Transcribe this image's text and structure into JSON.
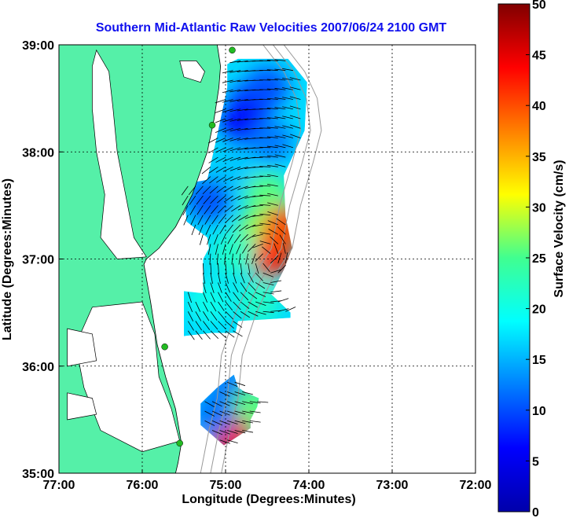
{
  "chart_data": {
    "type": "heatmap",
    "title": "Southern Mid-Atlantic Raw Velocities 2007/06/24 2100 GMT",
    "xlabel": "Longitude (Degrees:Minutes)",
    "ylabel": "Latitude (Degrees:Minutes)",
    "xlim": [
      -77,
      -72
    ],
    "ylim": [
      35,
      39
    ],
    "x_ticks": [
      {
        "value": -77,
        "label": "77:00"
      },
      {
        "value": -76,
        "label": "76:00"
      },
      {
        "value": -75,
        "label": "75:00"
      },
      {
        "value": -74,
        "label": "74:00"
      },
      {
        "value": -73,
        "label": "73:00"
      },
      {
        "value": -72,
        "label": "72:00"
      }
    ],
    "y_ticks": [
      {
        "value": 35,
        "label": "35:00"
      },
      {
        "value": 36,
        "label": "36:00"
      },
      {
        "value": 37,
        "label": "37:00"
      },
      {
        "value": 38,
        "label": "38:00"
      },
      {
        "value": 39,
        "label": "39:00"
      }
    ],
    "grid": true,
    "colorbar": {
      "label": "Surface Velocity (cm/s)",
      "range": [
        0,
        50
      ],
      "ticks": [
        {
          "value": 0,
          "label": "0"
        },
        {
          "value": 5,
          "label": "5"
        },
        {
          "value": 10,
          "label": "10"
        },
        {
          "value": 15,
          "label": "15"
        },
        {
          "value": 20,
          "label": "20"
        },
        {
          "value": 25,
          "label": "25"
        },
        {
          "value": 30,
          "label": "30"
        },
        {
          "value": 35,
          "label": "35"
        },
        {
          "value": 40,
          "label": "40"
        },
        {
          "value": 45,
          "label": "45"
        },
        {
          "value": 50,
          "label": "50"
        }
      ],
      "colors": [
        "#0000aa",
        "#0000ff",
        "#0080ff",
        "#00ffff",
        "#40ff90",
        "#ffff00",
        "#ff8000",
        "#ff0000",
        "#800000"
      ]
    },
    "land_color": "#55f0a8",
    "site_color": "#22bb22",
    "vector_color": "#000000",
    "land_outline": [
      [
        -77,
        39
      ],
      [
        -75.1,
        39
      ],
      [
        -75.06,
        38.8
      ],
      [
        -75.08,
        38.6
      ],
      [
        -75.14,
        38.3
      ],
      [
        -75.22,
        38.0
      ],
      [
        -75.4,
        37.6
      ],
      [
        -75.6,
        37.3
      ],
      [
        -75.8,
        37.1
      ],
      [
        -75.95,
        37.0
      ],
      [
        -75.98,
        36.95
      ],
      [
        -75.9,
        36.6
      ],
      [
        -75.82,
        36.2
      ],
      [
        -75.72,
        35.9
      ],
      [
        -75.6,
        35.6
      ],
      [
        -75.53,
        35.28
      ],
      [
        -75.57,
        35.1
      ],
      [
        -75.6,
        35
      ],
      [
        -77,
        35
      ]
    ],
    "bays": [
      [
        [
          -76.55,
          38.95
        ],
        [
          -76.4,
          38.75
        ],
        [
          -76.35,
          38.4
        ],
        [
          -76.3,
          38.0
        ],
        [
          -76.2,
          37.6
        ],
        [
          -76.1,
          37.2
        ],
        [
          -75.95,
          37.02
        ],
        [
          -76.3,
          37.0
        ],
        [
          -76.5,
          37.2
        ],
        [
          -76.45,
          37.6
        ],
        [
          -76.55,
          38.0
        ],
        [
          -76.6,
          38.4
        ],
        [
          -76.6,
          38.8
        ]
      ],
      [
        [
          -75.55,
          38.85
        ],
        [
          -75.35,
          38.85
        ],
        [
          -75.25,
          38.75
        ],
        [
          -75.3,
          38.65
        ],
        [
          -75.5,
          38.7
        ]
      ],
      [
        [
          -76.6,
          36.55
        ],
        [
          -76.0,
          36.6
        ],
        [
          -75.85,
          36.3
        ],
        [
          -75.8,
          35.9
        ],
        [
          -75.65,
          35.6
        ],
        [
          -75.55,
          35.3
        ],
        [
          -76.0,
          35.2
        ],
        [
          -76.5,
          35.4
        ],
        [
          -76.7,
          35.8
        ],
        [
          -76.8,
          36.2
        ]
      ],
      [
        [
          -76.9,
          36.35
        ],
        [
          -76.6,
          36.3
        ],
        [
          -76.55,
          36.05
        ],
        [
          -76.9,
          36.0
        ]
      ],
      [
        [
          -76.9,
          35.75
        ],
        [
          -76.6,
          35.7
        ],
        [
          -76.55,
          35.55
        ],
        [
          -76.9,
          35.5
        ]
      ]
    ],
    "coverage_regions": [
      [
        [
          -74.85,
          38.87
        ],
        [
          -74.25,
          38.87
        ],
        [
          -74.02,
          38.65
        ],
        [
          -74.05,
          38.2
        ],
        [
          -74.3,
          37.78
        ],
        [
          -74.28,
          37.4
        ],
        [
          -74.2,
          37.1
        ],
        [
          -74.3,
          36.9
        ],
        [
          -74.45,
          36.67
        ],
        [
          -74.22,
          36.5
        ],
        [
          -74.22,
          36.45
        ],
        [
          -74.85,
          36.42
        ],
        [
          -74.88,
          36.31
        ],
        [
          -75.16,
          36.31
        ],
        [
          -75.5,
          36.28
        ],
        [
          -75.5,
          36.7
        ],
        [
          -75.27,
          36.68
        ],
        [
          -75.27,
          37.0
        ],
        [
          -75.2,
          37.1
        ],
        [
          -75.22,
          37.2
        ],
        [
          -75.47,
          37.35
        ],
        [
          -75.5,
          37.7
        ],
        [
          -75.22,
          37.74
        ],
        [
          -75.1,
          38.16
        ],
        [
          -74.98,
          38.6
        ],
        [
          -74.98,
          38.82
        ]
      ],
      [
        [
          -74.9,
          35.92
        ],
        [
          -74.85,
          35.8
        ],
        [
          -74.75,
          35.75
        ],
        [
          -74.6,
          35.7
        ],
        [
          -74.62,
          35.62
        ],
        [
          -74.7,
          35.5
        ],
        [
          -74.7,
          35.42
        ],
        [
          -74.9,
          35.32
        ],
        [
          -75.02,
          35.26
        ],
        [
          -75.3,
          35.45
        ],
        [
          -75.3,
          35.65
        ],
        [
          -75.1,
          35.8
        ]
      ]
    ],
    "velocity_zones": [
      {
        "lon": -74.7,
        "lat": 38.45,
        "speed": 8
      },
      {
        "lon": -74.5,
        "lat": 38.6,
        "speed": 10
      },
      {
        "lon": -74.8,
        "lat": 38.25,
        "speed": 6
      },
      {
        "lon": -74.45,
        "lat": 38.1,
        "speed": 12
      },
      {
        "lon": -74.9,
        "lat": 37.85,
        "speed": 16
      },
      {
        "lon": -74.5,
        "lat": 37.6,
        "speed": 26
      },
      {
        "lon": -75.2,
        "lat": 37.55,
        "speed": 10
      },
      {
        "lon": -74.6,
        "lat": 37.25,
        "speed": 28
      },
      {
        "lon": -74.45,
        "lat": 37.02,
        "speed": 42
      },
      {
        "lon": -74.3,
        "lat": 37.3,
        "speed": 40
      },
      {
        "lon": -74.9,
        "lat": 37.05,
        "speed": 22
      },
      {
        "lon": -75.2,
        "lat": 36.6,
        "speed": 20
      },
      {
        "lon": -74.6,
        "lat": 36.6,
        "speed": 22
      },
      {
        "lon": -74.9,
        "lat": 35.75,
        "speed": 10
      },
      {
        "lon": -74.7,
        "lat": 35.62,
        "speed": 26
      },
      {
        "lon": -74.95,
        "lat": 35.35,
        "speed": 44
      },
      {
        "lon": -75.15,
        "lat": 35.55,
        "speed": 12
      }
    ],
    "sites": [
      {
        "lon": -74.92,
        "lat": 38.95
      },
      {
        "lon": -75.16,
        "lat": 38.25
      },
      {
        "lon": -75.73,
        "lat": 36.18
      },
      {
        "lon": -75.55,
        "lat": 35.28
      }
    ]
  }
}
